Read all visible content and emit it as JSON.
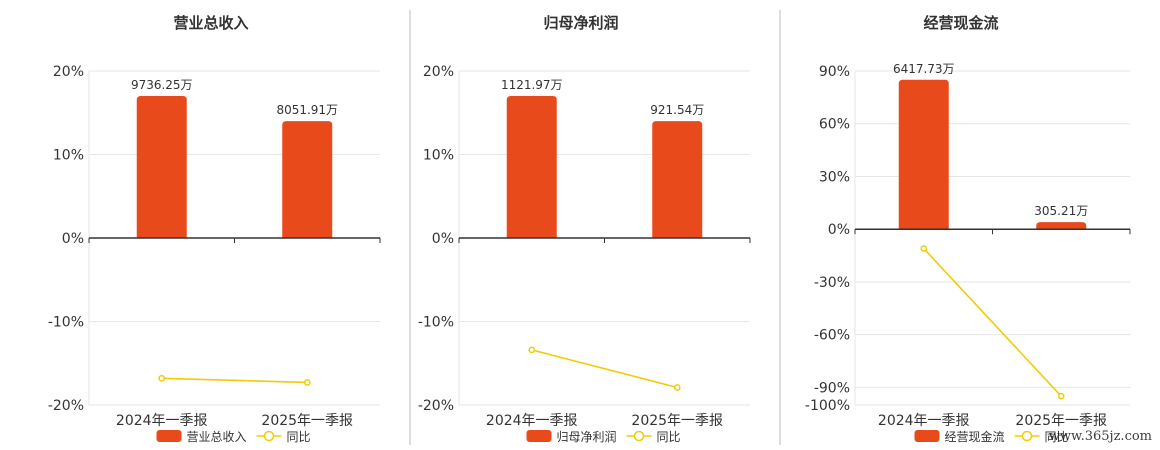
{
  "colors": {
    "bar": "#e84a1c",
    "line": "#f2cb05",
    "axis": "#333333",
    "grid": "#e6e6e6",
    "divider": "#bbbbbb",
    "text": "#333333"
  },
  "watermark": "www.365jz.com",
  "chart_data": [
    {
      "type": "bar",
      "title": "营业总收入",
      "categories": [
        "2024年一季报",
        "2025年一季报"
      ],
      "bar_labels": [
        "9736.25万",
        "8051.91万"
      ],
      "series": [
        {
          "name": "营业总收入",
          "type": "bar",
          "values": [
            17.0,
            14.0
          ]
        },
        {
          "name": "同比",
          "type": "line",
          "values": [
            -16.8,
            -17.3
          ]
        }
      ],
      "ylim": [
        -20,
        20
      ],
      "yticks": [
        20,
        10,
        0,
        -10,
        -20
      ],
      "ytick_labels": [
        "20%",
        "10%",
        "0%",
        "-10%",
        "-20%"
      ],
      "grid": true,
      "legend": "bottom"
    },
    {
      "type": "bar",
      "title": "归母净利润",
      "categories": [
        "2024年一季报",
        "2025年一季报"
      ],
      "bar_labels": [
        "1121.97万",
        "921.54万"
      ],
      "series": [
        {
          "name": "归母净利润",
          "type": "bar",
          "values": [
            17.0,
            14.0
          ]
        },
        {
          "name": "同比",
          "type": "line",
          "values": [
            -13.4,
            -17.9
          ]
        }
      ],
      "ylim": [
        -20,
        20
      ],
      "yticks": [
        20,
        10,
        0,
        -10,
        -20
      ],
      "ytick_labels": [
        "20%",
        "10%",
        "0%",
        "-10%",
        "-20%"
      ],
      "grid": true,
      "legend": "bottom"
    },
    {
      "type": "bar",
      "title": "经营现金流",
      "categories": [
        "2024年一季报",
        "2025年一季报"
      ],
      "bar_labels": [
        "6417.73万",
        "305.21万"
      ],
      "series": [
        {
          "name": "经营现金流",
          "type": "bar",
          "values": [
            85.0,
            4.0
          ]
        },
        {
          "name": "同比",
          "type": "line",
          "values": [
            -11.0,
            -95.0
          ]
        }
      ],
      "ylim": [
        -100,
        90
      ],
      "yticks": [
        90,
        60,
        30,
        0,
        -30,
        -60,
        -90,
        -100
      ],
      "ytick_labels": [
        "90%",
        "60%",
        "30%",
        "0%",
        "-30%",
        "-60%",
        "-90%",
        "-100%"
      ],
      "grid": true,
      "legend": "bottom"
    }
  ]
}
